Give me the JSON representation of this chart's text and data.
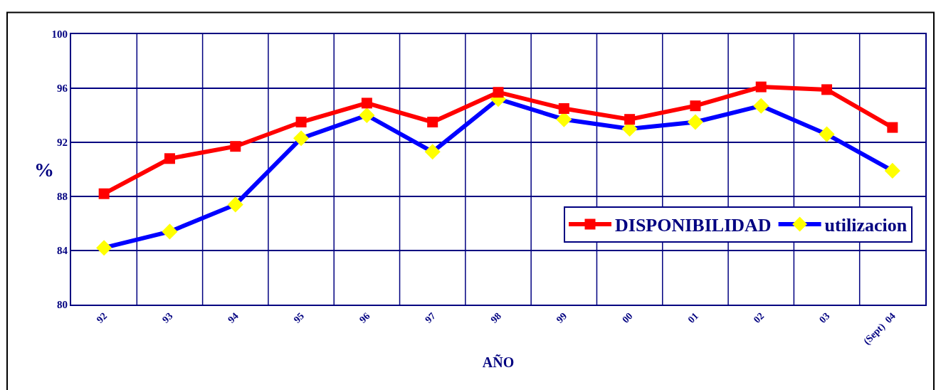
{
  "chart_data": {
    "type": "line",
    "xlabel": "AÑO",
    "ylabel": "%",
    "categories": [
      "92",
      "93",
      "94",
      "95",
      "96",
      "97",
      "98",
      "99",
      "00",
      "01",
      "02",
      "03",
      "(Sept)  04"
    ],
    "series": [
      {
        "name": "DISPONIBILIDAD",
        "color": "#ff0000",
        "marker": "square",
        "values": [
          88.2,
          90.8,
          91.7,
          93.5,
          94.9,
          93.5,
          95.7,
          94.5,
          93.7,
          94.7,
          96.1,
          95.9,
          93.1
        ]
      },
      {
        "name": "utilizacion",
        "color": "#0000ff",
        "marker": "diamond",
        "colors": [
          "#ffff00",
          "#ffff00",
          "#ffff00",
          "#ffff00",
          "#ffff00",
          "#ffff00",
          "#ffff00",
          "#ffff00",
          "#ffff00",
          "#ffff00",
          "#ffff00",
          "#ffff00",
          "#ffff00"
        ],
        "values": [
          84.2,
          85.4,
          87.4,
          92.3,
          94.0,
          91.3,
          95.2,
          93.7,
          93.0,
          93.5,
          94.7,
          92.6,
          89.9
        ]
      }
    ],
    "ylim": [
      80,
      100
    ],
    "yticks": [
      80,
      84,
      88,
      92,
      96,
      100
    ],
    "grid": true,
    "legend": "bottom right",
    "line_style": "solid"
  }
}
